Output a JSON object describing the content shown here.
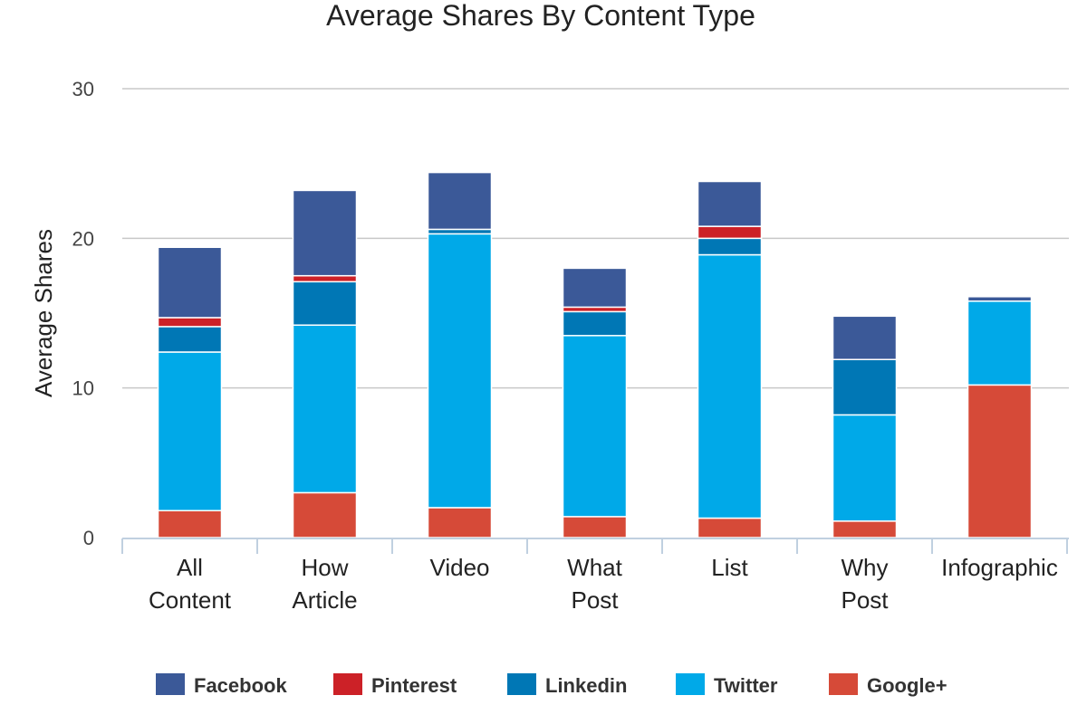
{
  "chart_data": {
    "type": "bar",
    "stacked": true,
    "title": "Average Shares By Content Type",
    "xlabel": "",
    "ylabel": "Average Shares",
    "ylim": [
      0,
      30
    ],
    "yticks": [
      0,
      10,
      20,
      30
    ],
    "grid": true,
    "legend_position": "bottom",
    "categories": [
      [
        "All",
        "Content"
      ],
      [
        "How",
        "Article"
      ],
      [
        "Video"
      ],
      [
        "What",
        "Post"
      ],
      [
        "List"
      ],
      [
        "Why",
        "Post"
      ],
      [
        "Infographic"
      ]
    ],
    "series": [
      {
        "name": "Google+",
        "color": "#d64a38",
        "values": [
          1.8,
          3.0,
          2.0,
          1.4,
          1.3,
          1.1,
          10.2
        ]
      },
      {
        "name": "Twitter",
        "color": "#00a9e8",
        "values": [
          10.6,
          11.2,
          18.3,
          12.1,
          17.6,
          7.1,
          5.6
        ]
      },
      {
        "name": "Linkedin",
        "color": "#0077b5",
        "values": [
          1.7,
          2.9,
          0.3,
          1.6,
          1.1,
          3.7,
          0.0
        ]
      },
      {
        "name": "Pinterest",
        "color": "#cc2127",
        "values": [
          0.6,
          0.4,
          0.0,
          0.3,
          0.8,
          0.0,
          0.0
        ]
      },
      {
        "name": "Facebook",
        "color": "#3b5998",
        "values": [
          4.7,
          5.7,
          3.8,
          2.6,
          3.0,
          2.9,
          0.3
        ]
      }
    ],
    "legend_order": [
      "Facebook",
      "Pinterest",
      "Linkedin",
      "Twitter",
      "Google+"
    ],
    "colors": {
      "grid": "#c8c8c8",
      "axis": "#c0d0e0",
      "bar_separator": "#ffffff"
    }
  }
}
